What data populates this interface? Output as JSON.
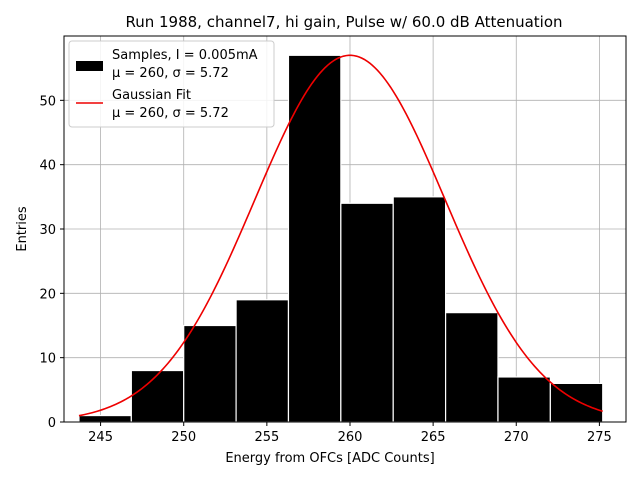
{
  "chart_data": {
    "type": "bar",
    "title": "Run 1988, channel7, hi gain, Pulse w/ 60.0 dB Attenuation",
    "xlabel": "Energy from OFCs [ADC Counts]",
    "ylabel": "Entries",
    "xlim": [
      242.8,
      276.6
    ],
    "ylim": [
      0,
      60
    ],
    "xticks": [
      245,
      250,
      255,
      260,
      265,
      270,
      275
    ],
    "yticks": [
      0,
      10,
      20,
      30,
      40,
      50
    ],
    "grid": true,
    "legend_position": "top-left",
    "histogram": {
      "name": "Samples, I = 0.005mA",
      "label_line2": "μ = 260, σ = 5.72",
      "color": "#000000",
      "bin_edges": [
        243.7,
        246.85,
        250.0,
        253.15,
        256.3,
        259.45,
        262.6,
        265.75,
        268.9,
        272.05,
        275.2
      ],
      "counts": [
        1,
        8,
        15,
        19,
        57,
        34,
        35,
        17,
        7,
        6
      ]
    },
    "fit": {
      "name": "Gaussian Fit",
      "label_line2": "μ = 260, σ = 5.72",
      "color": "#ee0000",
      "amplitude": 57,
      "mu": 260,
      "sigma": 5.72
    }
  }
}
